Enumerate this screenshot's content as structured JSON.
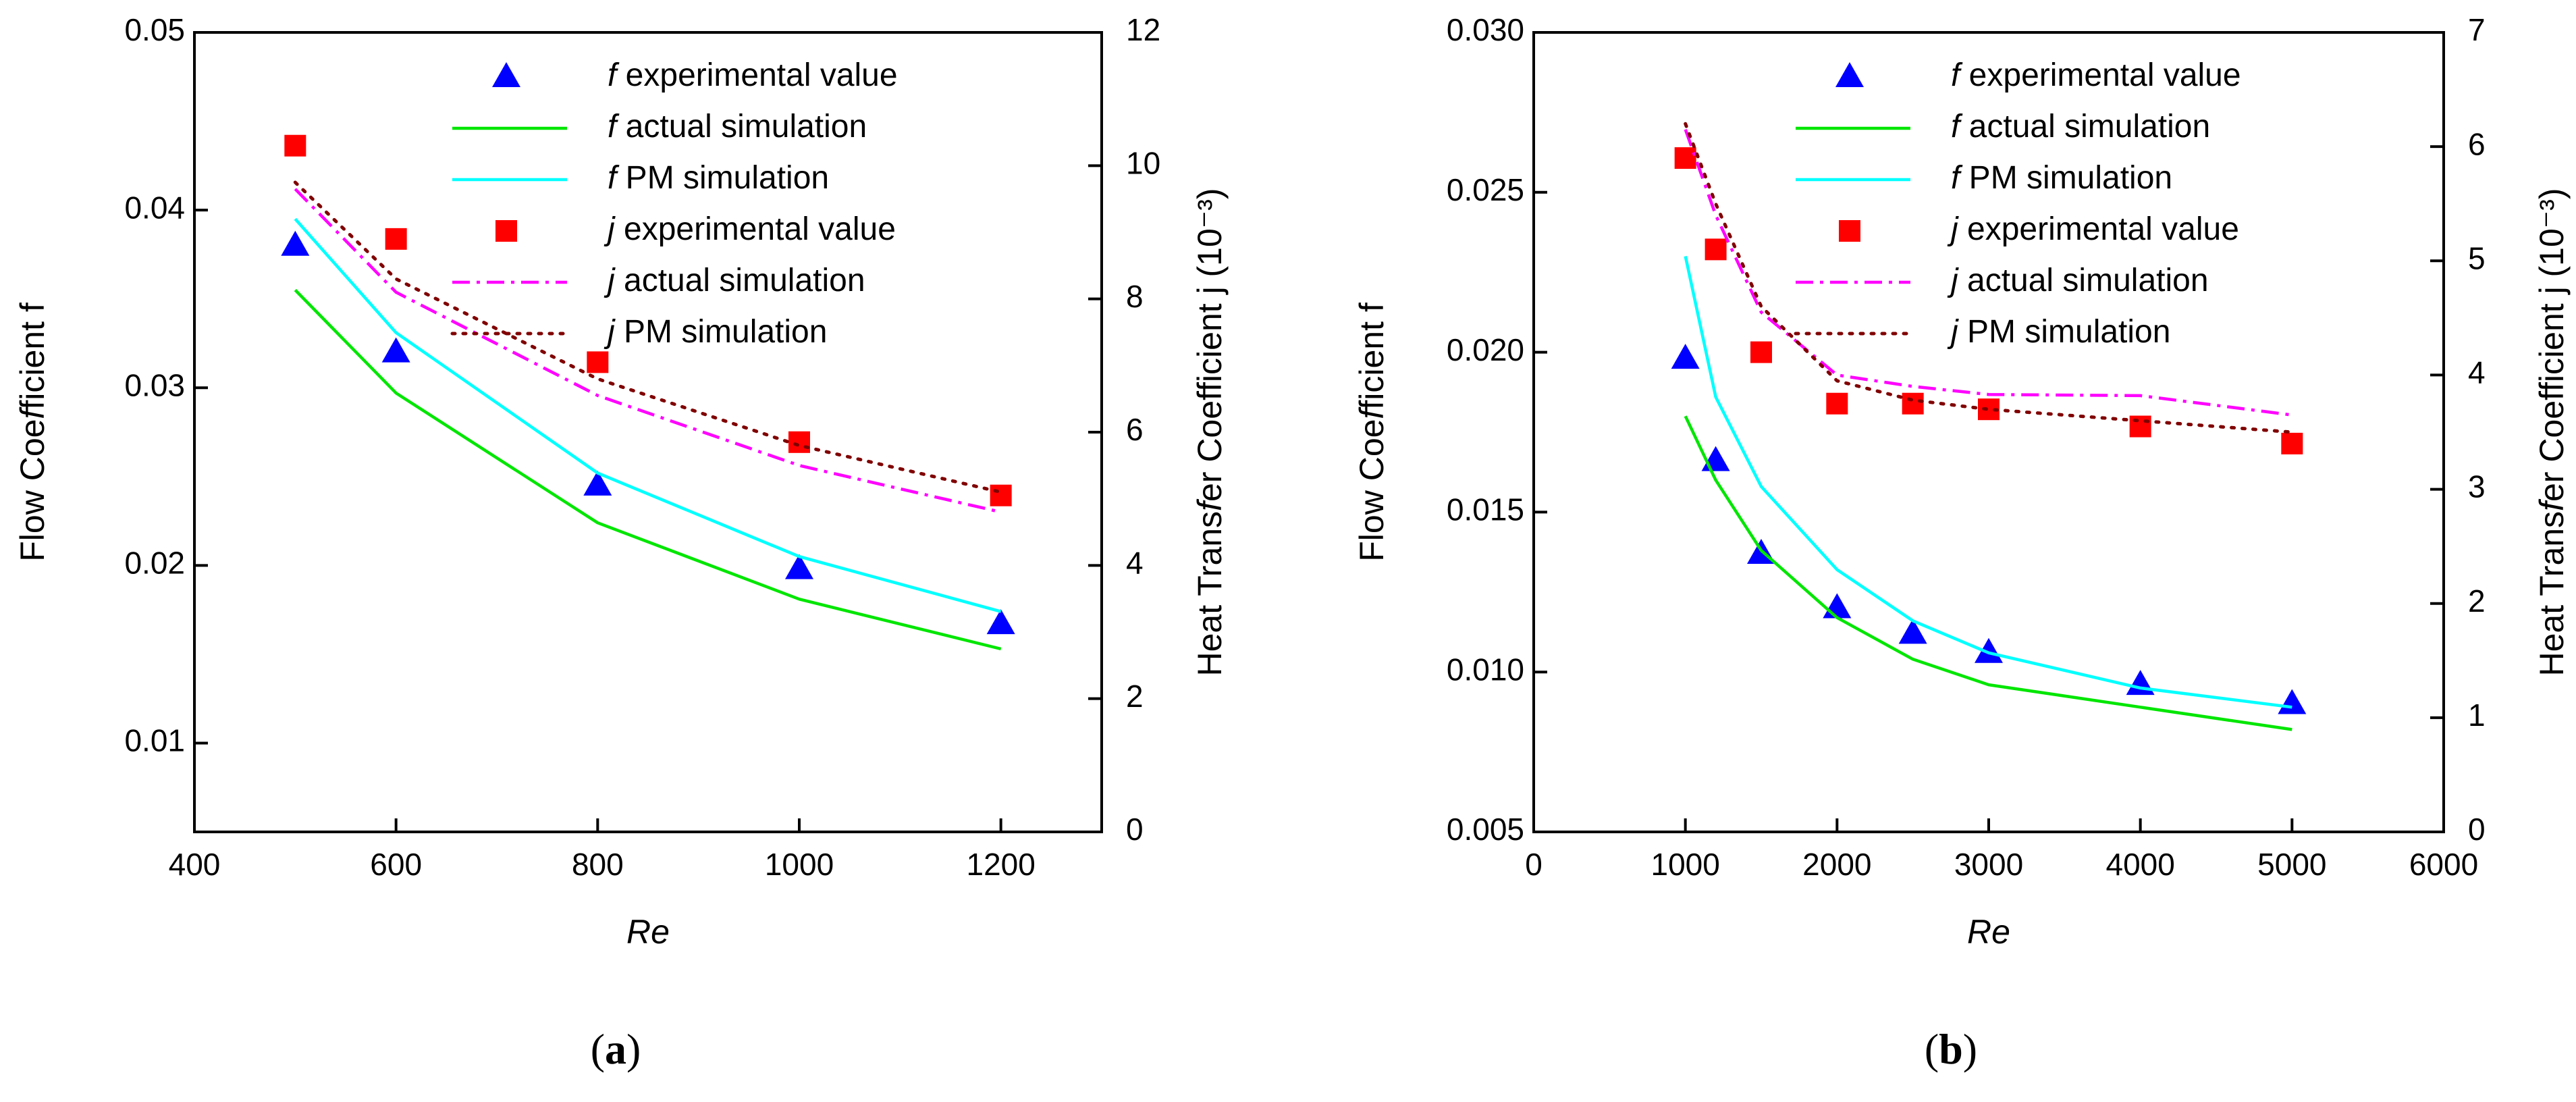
{
  "legend": [
    {
      "key": "f_exp",
      "sym": "f",
      "text": " experimental value",
      "color": "#0000ff",
      "style": "triangle"
    },
    {
      "key": "f_act",
      "sym": "f",
      "text": " actual simulation",
      "color": "#00e600",
      "style": "solid"
    },
    {
      "key": "f_pm",
      "sym": "f",
      "text": " PM simulation",
      "color": "#00ffff",
      "style": "solid"
    },
    {
      "key": "j_exp",
      "sym": "j",
      "text": " experimental value",
      "color": "#ff0000",
      "style": "square"
    },
    {
      "key": "j_act",
      "sym": "j",
      "text": " actual simulation",
      "color": "#ff00ff",
      "style": "dashdot"
    },
    {
      "key": "j_pm",
      "sym": "j",
      "text": " PM simulation",
      "color": "#800000",
      "style": "dotted"
    }
  ],
  "chart_data": [
    {
      "type": "line",
      "panel_label": "(a)",
      "xlabel": "Re",
      "ylabel_left": "Flow Coefficient  f",
      "ylabel_right": "Heat Transfer Coefficient  j (10⁻³)",
      "xlim": [
        400,
        1300
      ],
      "xticks": [
        400,
        600,
        800,
        1000,
        1200
      ],
      "ylim_left": [
        0.005,
        0.05
      ],
      "yticks_left": [
        "0.01",
        "0.02",
        "0.03",
        "0.04",
        "0.05"
      ],
      "ylim_right": [
        0,
        12
      ],
      "yticks_right": [
        "0",
        "2",
        "4",
        "6",
        "8",
        "10",
        "12"
      ],
      "series": [
        {
          "key": "f_exp",
          "axis": "left",
          "x": [
            500,
            600,
            800,
            1000,
            1200
          ],
          "values": [
            0.038,
            0.032,
            0.0245,
            0.0198,
            0.0167
          ]
        },
        {
          "key": "f_act",
          "axis": "left",
          "x": [
            500,
            600,
            800,
            1000,
            1200
          ],
          "values": [
            0.0355,
            0.0297,
            0.0224,
            0.0181,
            0.0153
          ]
        },
        {
          "key": "f_pm",
          "axis": "left",
          "x": [
            500,
            600,
            800,
            1000,
            1200
          ],
          "values": [
            0.0395,
            0.0331,
            0.0252,
            0.0205,
            0.0174
          ]
        },
        {
          "key": "j_exp",
          "axis": "right",
          "x": [
            500,
            600,
            800,
            1000,
            1200
          ],
          "values": [
            10.3,
            8.9,
            7.05,
            5.85,
            5.05
          ]
        },
        {
          "key": "j_act",
          "axis": "right",
          "x": [
            500,
            600,
            800,
            1000,
            1200
          ],
          "values": [
            9.65,
            8.1,
            6.55,
            5.5,
            4.8
          ]
        },
        {
          "key": "j_pm",
          "axis": "right",
          "x": [
            500,
            600,
            800,
            1000,
            1200
          ],
          "values": [
            9.75,
            8.3,
            6.8,
            5.8,
            5.1
          ]
        }
      ]
    },
    {
      "type": "line",
      "panel_label": "(b)",
      "xlabel": "Re",
      "ylabel_left": "Flow Coefficient  f",
      "ylabel_right": "Heat Transfer Coefficient  j (10⁻³)",
      "xlim": [
        0,
        6000
      ],
      "xticks": [
        0,
        1000,
        2000,
        3000,
        4000,
        5000,
        6000
      ],
      "ylim_left": [
        0.005,
        0.03
      ],
      "yticks_left": [
        "0.005",
        "0.010",
        "0.015",
        "0.020",
        "0.025",
        "0.030"
      ],
      "ylim_right": [
        0,
        7
      ],
      "yticks_right": [
        "0",
        "1",
        "2",
        "3",
        "4",
        "5",
        "6",
        "7"
      ],
      "series": [
        {
          "key": "f_exp",
          "axis": "left",
          "x": [
            1000,
            1200,
            1500,
            2000,
            2500,
            3000,
            4000,
            5000
          ],
          "values": [
            0.0198,
            0.0166,
            0.0137,
            0.012,
            0.0112,
            0.0106,
            0.0096,
            0.009
          ]
        },
        {
          "key": "f_act",
          "axis": "left",
          "x": [
            1000,
            1200,
            1500,
            2000,
            2500,
            3000,
            4000,
            5000
          ],
          "values": [
            0.018,
            0.016,
            0.0138,
            0.0117,
            0.0104,
            0.0096,
            0.0089,
            0.0082
          ]
        },
        {
          "key": "f_pm",
          "axis": "left",
          "x": [
            1000,
            1200,
            1500,
            2000,
            2500,
            3000,
            4000,
            5000
          ],
          "values": [
            0.023,
            0.0186,
            0.0158,
            0.0132,
            0.0116,
            0.0106,
            0.0095,
            0.0089
          ]
        },
        {
          "key": "j_exp",
          "axis": "right",
          "x": [
            1000,
            1200,
            1500,
            2000,
            2500,
            3000,
            4000,
            5000
          ],
          "values": [
            5.9,
            5.1,
            4.2,
            3.75,
            3.75,
            3.7,
            3.55,
            3.4
          ]
        },
        {
          "key": "j_act",
          "axis": "right",
          "x": [
            1000,
            1200,
            1500,
            2000,
            2500,
            3000,
            4000,
            5000
          ],
          "values": [
            6.15,
            5.4,
            4.55,
            4.0,
            3.9,
            3.83,
            3.82,
            3.65
          ]
        },
        {
          "key": "j_pm",
          "axis": "right",
          "x": [
            1000,
            1200,
            1500,
            2000,
            2500,
            3000,
            4000,
            5000
          ],
          "values": [
            6.2,
            5.5,
            4.6,
            3.95,
            3.78,
            3.7,
            3.6,
            3.5
          ]
        }
      ]
    }
  ]
}
